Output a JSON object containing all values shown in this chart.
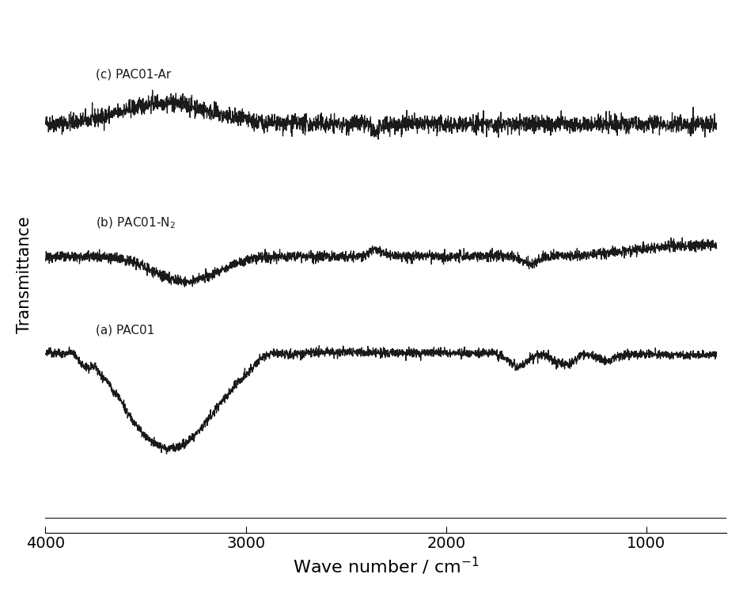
{
  "title": "",
  "xlabel": "Wave number / cm$^{-1}$",
  "ylabel": "Transmittance",
  "xlim": [
    4000,
    600
  ],
  "ylim": [
    0,
    1.05
  ],
  "xticks": [
    4000,
    3000,
    2000,
    1000
  ],
  "background_color": "#ffffff",
  "line_color": "#1a1a1a",
  "offsets": [
    0.8,
    0.5,
    0.16
  ],
  "scale_c": 0.1,
  "scale_b": 0.1,
  "scale_a": 0.22
}
